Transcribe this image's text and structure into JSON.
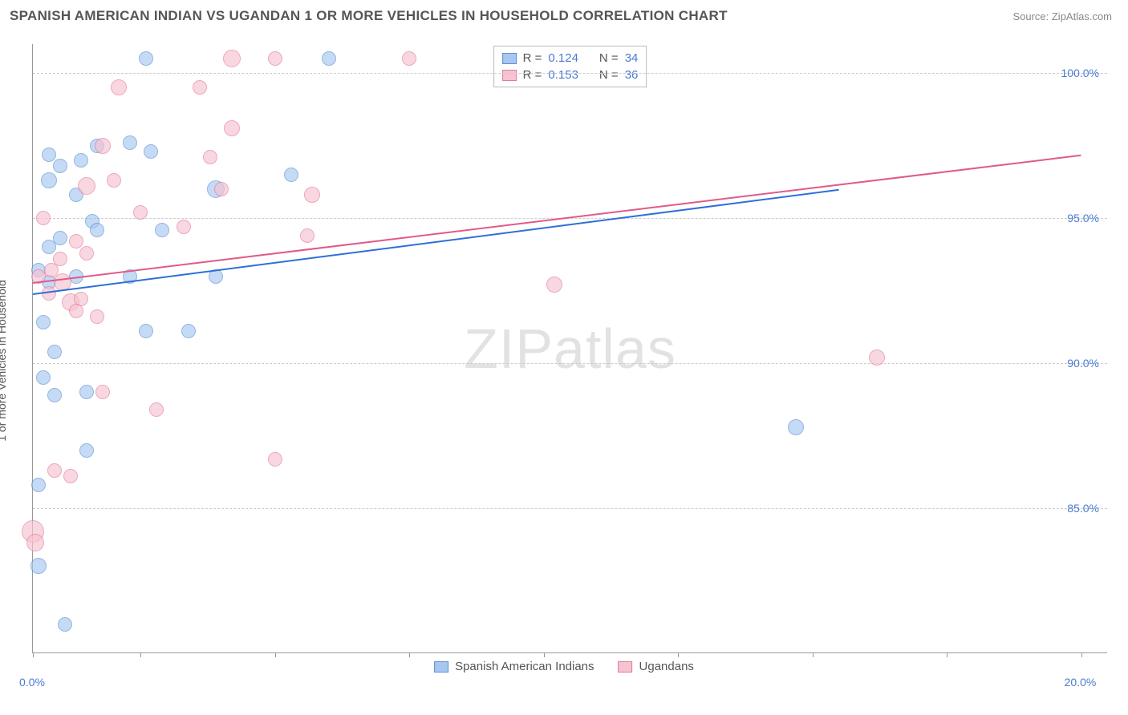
{
  "title": "SPANISH AMERICAN INDIAN VS UGANDAN 1 OR MORE VEHICLES IN HOUSEHOLD CORRELATION CHART",
  "source": "Source: ZipAtlas.com",
  "y_axis_label": "1 or more Vehicles in Household",
  "watermark": {
    "part1": "ZIP",
    "part2": "atlas"
  },
  "chart": {
    "type": "scatter",
    "background_color": "#ffffff",
    "grid_color": "#cccccc",
    "axis_color": "#999999",
    "text_color": "#555555",
    "value_color": "#4a7bd0",
    "title_fontsize": 17,
    "label_fontsize": 14,
    "xlim": [
      0.0,
      20.0
    ],
    "ylim": [
      80.0,
      101.0
    ],
    "x_ticks": [
      0.0,
      2.0,
      4.5,
      7.0,
      9.5,
      12.0,
      14.5,
      17.0,
      19.5
    ],
    "x_tick_labels": [
      "0.0%",
      "",
      "",
      "",
      "",
      "",
      "",
      "",
      "20.0%"
    ],
    "y_ticks": [
      85.0,
      90.0,
      95.0,
      100.0
    ],
    "y_tick_labels": [
      "85.0%",
      "90.0%",
      "95.0%",
      "100.0%"
    ],
    "marker_size_base": 16,
    "series": [
      {
        "name": "Spanish American Indians",
        "fill_color": "#a7c7f0",
        "stroke_color": "#5b8fd6",
        "r_value": "0.124",
        "n_value": "34",
        "trend": {
          "x1": 0.0,
          "y1": 92.4,
          "x2": 15.0,
          "y2": 96.0,
          "color": "#2e6fd6",
          "width": 2
        },
        "points": [
          {
            "x": 2.1,
            "y": 100.5,
            "s": 18
          },
          {
            "x": 5.5,
            "y": 100.5,
            "s": 18
          },
          {
            "x": 0.1,
            "y": 83.0,
            "s": 20
          },
          {
            "x": 0.6,
            "y": 81.0,
            "s": 18
          },
          {
            "x": 2.2,
            "y": 97.3,
            "s": 18
          },
          {
            "x": 0.9,
            "y": 97.0,
            "s": 18
          },
          {
            "x": 0.3,
            "y": 96.3,
            "s": 20
          },
          {
            "x": 3.4,
            "y": 96.0,
            "s": 22
          },
          {
            "x": 4.8,
            "y": 96.5,
            "s": 18
          },
          {
            "x": 1.1,
            "y": 94.9,
            "s": 18
          },
          {
            "x": 1.2,
            "y": 94.6,
            "s": 18
          },
          {
            "x": 2.4,
            "y": 94.6,
            "s": 18
          },
          {
            "x": 0.3,
            "y": 94.0,
            "s": 18
          },
          {
            "x": 0.1,
            "y": 93.2,
            "s": 18
          },
          {
            "x": 0.3,
            "y": 92.8,
            "s": 18
          },
          {
            "x": 0.2,
            "y": 91.4,
            "s": 18
          },
          {
            "x": 2.1,
            "y": 91.1,
            "s": 18
          },
          {
            "x": 2.9,
            "y": 91.1,
            "s": 18
          },
          {
            "x": 0.4,
            "y": 90.4,
            "s": 18
          },
          {
            "x": 1.0,
            "y": 89.0,
            "s": 18
          },
          {
            "x": 0.4,
            "y": 88.9,
            "s": 18
          },
          {
            "x": 1.0,
            "y": 87.0,
            "s": 18
          },
          {
            "x": 14.2,
            "y": 87.8,
            "s": 20
          },
          {
            "x": 0.1,
            "y": 85.8,
            "s": 18
          },
          {
            "x": 1.2,
            "y": 97.5,
            "s": 18
          },
          {
            "x": 0.5,
            "y": 94.3,
            "s": 18
          },
          {
            "x": 1.8,
            "y": 93.0,
            "s": 18
          },
          {
            "x": 0.8,
            "y": 93.0,
            "s": 18
          },
          {
            "x": 3.4,
            "y": 93.0,
            "s": 18
          },
          {
            "x": 1.8,
            "y": 97.6,
            "s": 18
          },
          {
            "x": 0.5,
            "y": 96.8,
            "s": 18
          },
          {
            "x": 0.8,
            "y": 95.8,
            "s": 18
          },
          {
            "x": 0.2,
            "y": 89.5,
            "s": 18
          },
          {
            "x": 0.3,
            "y": 97.2,
            "s": 18
          }
        ]
      },
      {
        "name": "Ugandans",
        "fill_color": "#f6c3d0",
        "stroke_color": "#e27a9a",
        "r_value": "0.153",
        "n_value": "36",
        "trend": {
          "x1": 0.0,
          "y1": 92.8,
          "x2": 19.5,
          "y2": 97.2,
          "color": "#e05a88",
          "width": 2
        },
        "points": [
          {
            "x": 3.7,
            "y": 100.5,
            "s": 22
          },
          {
            "x": 4.5,
            "y": 100.5,
            "s": 18
          },
          {
            "x": 7.0,
            "y": 100.5,
            "s": 18
          },
          {
            "x": 1.6,
            "y": 99.5,
            "s": 20
          },
          {
            "x": 3.1,
            "y": 99.5,
            "s": 18
          },
          {
            "x": 3.7,
            "y": 98.1,
            "s": 20
          },
          {
            "x": 1.3,
            "y": 97.5,
            "s": 20
          },
          {
            "x": 3.3,
            "y": 97.1,
            "s": 18
          },
          {
            "x": 1.5,
            "y": 96.3,
            "s": 18
          },
          {
            "x": 1.0,
            "y": 96.1,
            "s": 22
          },
          {
            "x": 3.5,
            "y": 96.0,
            "s": 18
          },
          {
            "x": 5.2,
            "y": 95.8,
            "s": 20
          },
          {
            "x": 2.8,
            "y": 94.7,
            "s": 18
          },
          {
            "x": 5.1,
            "y": 94.4,
            "s": 18
          },
          {
            "x": 0.1,
            "y": 93.0,
            "s": 18
          },
          {
            "x": 0.35,
            "y": 93.2,
            "s": 18
          },
          {
            "x": 0.55,
            "y": 92.8,
            "s": 22
          },
          {
            "x": 0.3,
            "y": 92.4,
            "s": 18
          },
          {
            "x": 0.7,
            "y": 92.1,
            "s": 22
          },
          {
            "x": 0.9,
            "y": 92.2,
            "s": 18
          },
          {
            "x": 0.8,
            "y": 91.8,
            "s": 18
          },
          {
            "x": 1.2,
            "y": 91.6,
            "s": 18
          },
          {
            "x": 9.7,
            "y": 92.7,
            "s": 20
          },
          {
            "x": 15.7,
            "y": 90.2,
            "s": 20
          },
          {
            "x": 1.3,
            "y": 89.0,
            "s": 18
          },
          {
            "x": 2.3,
            "y": 88.4,
            "s": 18
          },
          {
            "x": 4.5,
            "y": 86.7,
            "s": 18
          },
          {
            "x": 0.4,
            "y": 86.3,
            "s": 18
          },
          {
            "x": 0.7,
            "y": 86.1,
            "s": 18
          },
          {
            "x": 0.0,
            "y": 84.2,
            "s": 28
          },
          {
            "x": 0.05,
            "y": 83.8,
            "s": 22
          },
          {
            "x": 0.5,
            "y": 93.6,
            "s": 18
          },
          {
            "x": 0.8,
            "y": 94.2,
            "s": 18
          },
          {
            "x": 1.0,
            "y": 93.8,
            "s": 18
          },
          {
            "x": 0.2,
            "y": 95.0,
            "s": 18
          },
          {
            "x": 2.0,
            "y": 95.2,
            "s": 18
          }
        ]
      }
    ]
  },
  "legend_bottom": [
    {
      "label": "Spanish American Indians",
      "fill": "#a7c7f0",
      "stroke": "#5b8fd6"
    },
    {
      "label": "Ugandans",
      "fill": "#f6c3d0",
      "stroke": "#e27a9a"
    }
  ]
}
